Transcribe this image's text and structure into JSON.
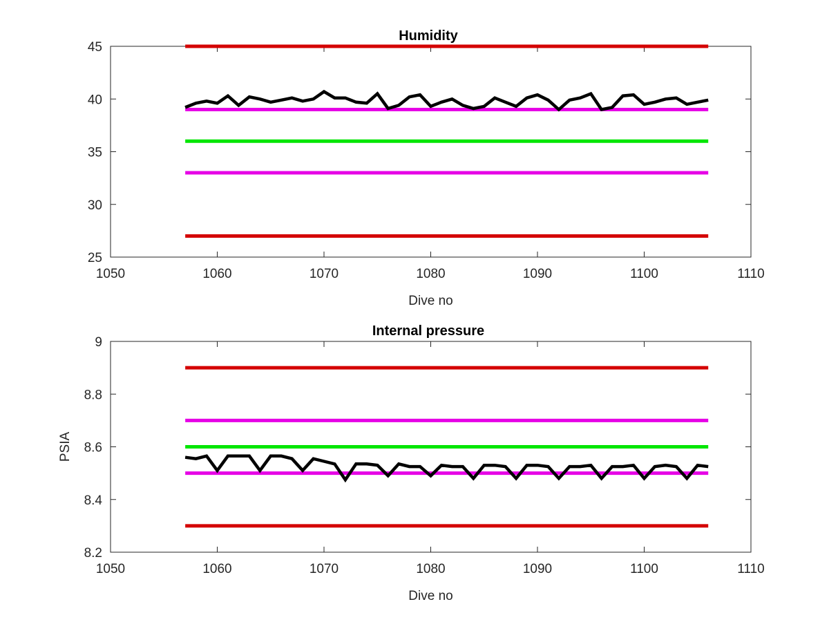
{
  "chart_data": [
    {
      "type": "line",
      "title": "Humidity",
      "xlabel": "Dive no",
      "ylabel": "",
      "xlim": [
        1050,
        1110
      ],
      "ylim": [
        25,
        45
      ],
      "xticks": [
        1050,
        1060,
        1070,
        1080,
        1090,
        1100,
        1110
      ],
      "yticks": [
        25,
        30,
        35,
        40,
        45
      ],
      "grid": false,
      "reference_lines": [
        {
          "y": 45,
          "x": [
            1057,
            1106
          ],
          "color": "#d40000"
        },
        {
          "y": 39,
          "x": [
            1057,
            1106
          ],
          "color": "#e600e6"
        },
        {
          "y": 36,
          "x": [
            1057,
            1106
          ],
          "color": "#00e600"
        },
        {
          "y": 33,
          "x": [
            1057,
            1106
          ],
          "color": "#e600e6"
        },
        {
          "y": 27,
          "x": [
            1057,
            1106
          ],
          "color": "#d40000"
        }
      ],
      "series": [
        {
          "color": "#000000",
          "x": [
            1057,
            1058,
            1059,
            1060,
            1061,
            1062,
            1063,
            1064,
            1065,
            1066,
            1067,
            1068,
            1069,
            1070,
            1071,
            1072,
            1073,
            1074,
            1075,
            1076,
            1077,
            1078,
            1079,
            1080,
            1081,
            1082,
            1083,
            1084,
            1085,
            1086,
            1087,
            1088,
            1089,
            1090,
            1091,
            1092,
            1093,
            1094,
            1095,
            1096,
            1097,
            1098,
            1099,
            1100,
            1101,
            1102,
            1103,
            1104,
            1105,
            1106
          ],
          "y": [
            39.2,
            39.6,
            39.8,
            39.6,
            40.3,
            39.4,
            40.2,
            40.0,
            39.7,
            39.9,
            40.1,
            39.8,
            40.0,
            40.7,
            40.1,
            40.1,
            39.7,
            39.6,
            40.5,
            39.1,
            39.4,
            40.2,
            40.4,
            39.3,
            39.7,
            40.0,
            39.4,
            39.1,
            39.3,
            40.1,
            39.7,
            39.3,
            40.1,
            40.4,
            39.9,
            39.0,
            39.9,
            40.1,
            40.5,
            39.0,
            39.2,
            40.3,
            40.4,
            39.5,
            39.7,
            40.0,
            40.1,
            39.5,
            39.7,
            39.9
          ]
        }
      ]
    },
    {
      "type": "line",
      "title": "Internal pressure",
      "xlabel": "Dive no",
      "ylabel": "PSIA",
      "xlim": [
        1050,
        1110
      ],
      "ylim": [
        8.2,
        9.0
      ],
      "xticks": [
        1050,
        1060,
        1070,
        1080,
        1090,
        1100,
        1110
      ],
      "yticks": [
        8.2,
        8.4,
        8.6,
        8.8,
        9.0
      ],
      "ytick_labels": [
        "8.2",
        "8.4",
        "8.6",
        "8.8",
        "9"
      ],
      "grid": false,
      "reference_lines": [
        {
          "y": 8.9,
          "x": [
            1057,
            1106
          ],
          "color": "#d40000"
        },
        {
          "y": 8.7,
          "x": [
            1057,
            1106
          ],
          "color": "#e600e6"
        },
        {
          "y": 8.6,
          "x": [
            1057,
            1106
          ],
          "color": "#00e600"
        },
        {
          "y": 8.5,
          "x": [
            1057,
            1106
          ],
          "color": "#e600e6"
        },
        {
          "y": 8.3,
          "x": [
            1057,
            1106
          ],
          "color": "#d40000"
        }
      ],
      "series": [
        {
          "color": "#000000",
          "x": [
            1057,
            1058,
            1059,
            1060,
            1061,
            1062,
            1063,
            1064,
            1065,
            1066,
            1067,
            1068,
            1069,
            1070,
            1071,
            1072,
            1073,
            1074,
            1075,
            1076,
            1077,
            1078,
            1079,
            1080,
            1081,
            1082,
            1083,
            1084,
            1085,
            1086,
            1087,
            1088,
            1089,
            1090,
            1091,
            1092,
            1093,
            1094,
            1095,
            1096,
            1097,
            1098,
            1099,
            1100,
            1101,
            1102,
            1103,
            1104,
            1105,
            1106
          ],
          "y": [
            8.56,
            8.555,
            8.565,
            8.51,
            8.565,
            8.565,
            8.565,
            8.51,
            8.565,
            8.565,
            8.555,
            8.51,
            8.555,
            8.545,
            8.535,
            8.475,
            8.535,
            8.535,
            8.53,
            8.49,
            8.535,
            8.525,
            8.525,
            8.49,
            8.53,
            8.525,
            8.525,
            8.48,
            8.53,
            8.53,
            8.525,
            8.48,
            8.53,
            8.53,
            8.525,
            8.48,
            8.525,
            8.525,
            8.53,
            8.48,
            8.525,
            8.525,
            8.53,
            8.48,
            8.525,
            8.53,
            8.525,
            8.48,
            8.53,
            8.525
          ]
        }
      ]
    }
  ]
}
